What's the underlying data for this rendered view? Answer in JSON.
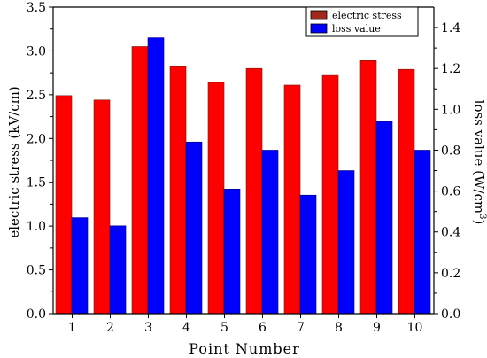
{
  "chart_data": {
    "type": "bar",
    "categories": [
      "1",
      "2",
      "3",
      "4",
      "5",
      "6",
      "7",
      "8",
      "9",
      "10"
    ],
    "xlabel": "Point Number",
    "series": [
      {
        "name": "electric stress",
        "axis": "left",
        "color": "#ff0000",
        "values": [
          2.49,
          2.44,
          3.05,
          2.82,
          2.64,
          2.8,
          2.61,
          2.72,
          2.89,
          2.79
        ]
      },
      {
        "name": "loss value",
        "axis": "right",
        "color": "#0000ff",
        "values": [
          0.47,
          0.43,
          1.35,
          0.84,
          0.61,
          0.8,
          0.58,
          0.7,
          0.94,
          0.8
        ]
      }
    ],
    "y_left": {
      "label": "electric stress (kV/cm)",
      "ylim": [
        0,
        3.5
      ],
      "ticks": [
        "0.0",
        "0.5",
        "1.0",
        "1.5",
        "2.0",
        "2.5",
        "3.0",
        "3.5"
      ]
    },
    "y_right": {
      "label_main": "loss value (W/cm",
      "label_sup": "3",
      "label_end": ")",
      "ylim": [
        0,
        1.5
      ],
      "ticks": [
        "0.0",
        "0.2",
        "0.4",
        "0.6",
        "0.8",
        "1.0",
        "1.2",
        "1.4"
      ]
    },
    "legend": {
      "placement": "top-right",
      "items": [
        {
          "label": "electric stress",
          "color": "#a0281c"
        },
        {
          "label": "loss value",
          "color": "#0000ff"
        }
      ]
    },
    "grid": false
  }
}
